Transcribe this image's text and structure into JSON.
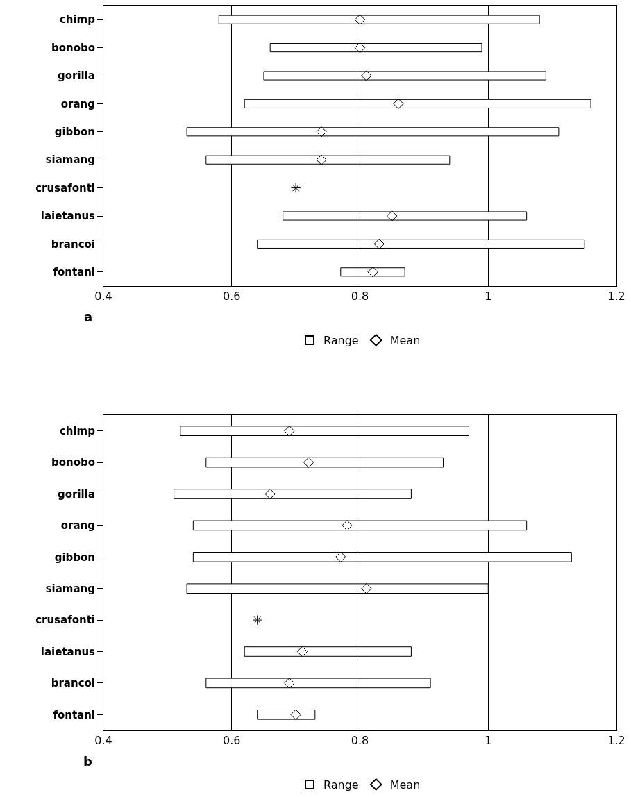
{
  "chart_data": [
    {
      "type": "bar",
      "orientation": "horizontal",
      "categories": [
        "chimp",
        "bonobo",
        "gorilla",
        "orang",
        "gibbon",
        "siamang",
        "crusafonti",
        "laietanus",
        "brancoi",
        "fontani"
      ],
      "xlim": [
        0.4,
        1.2
      ],
      "xticks": [
        0.4,
        0.6,
        0.8,
        1,
        1.2
      ],
      "grid": "x",
      "legend": "bottom",
      "annotations": [
        "a"
      ],
      "series": [
        {
          "name": "Range",
          "color": "#ffffff",
          "base": [
            0.58,
            0.66,
            0.65,
            0.62,
            0.53,
            0.56,
            null,
            0.68,
            0.64,
            0.77
          ],
          "values": [
            0.5,
            0.33,
            0.44,
            0.54,
            0.58,
            0.38,
            null,
            0.38,
            0.51,
            0.1
          ]
        },
        {
          "name": "Mean",
          "type": "scatter",
          "marker": "diamond",
          "color": "#000000",
          "values": [
            0.8,
            0.8,
            0.81,
            0.86,
            0.74,
            0.74,
            null,
            0.85,
            0.83,
            0.82
          ]
        },
        {
          "type": "scatter",
          "marker": "cross",
          "color": "#000000",
          "values": [
            null,
            null,
            null,
            null,
            null,
            null,
            0.7,
            null,
            null,
            null
          ]
        }
      ]
    },
    {
      "type": "bar",
      "orientation": "horizontal",
      "categories": [
        "chimp",
        "bonobo",
        "gorilla",
        "orang",
        "gibbon",
        "siamang",
        "crusafonti",
        "laietanus",
        "brancoi",
        "fontani"
      ],
      "xlim": [
        0.4,
        1.2
      ],
      "xticks": [
        0.4,
        0.6,
        0.8,
        1,
        1.2
      ],
      "grid": "x",
      "legend": "bottom",
      "annotations": [
        "b"
      ],
      "series": [
        {
          "name": "Range",
          "color": "#ffffff",
          "base": [
            0.52,
            0.56,
            0.51,
            0.54,
            0.54,
            0.53,
            null,
            0.62,
            0.56,
            0.64
          ],
          "values": [
            0.45,
            0.37,
            0.37,
            0.52,
            0.59,
            0.47,
            null,
            0.26,
            0.35,
            0.09
          ]
        },
        {
          "name": "Mean",
          "type": "scatter",
          "marker": "diamond",
          "color": "#000000",
          "values": [
            0.69,
            0.72,
            0.66,
            0.78,
            0.77,
            0.81,
            null,
            0.71,
            0.69,
            0.7
          ]
        },
        {
          "type": "scatter",
          "marker": "cross",
          "color": "#000000",
          "values": [
            null,
            null,
            null,
            null,
            null,
            null,
            0.64,
            null,
            null,
            null
          ]
        }
      ]
    }
  ]
}
